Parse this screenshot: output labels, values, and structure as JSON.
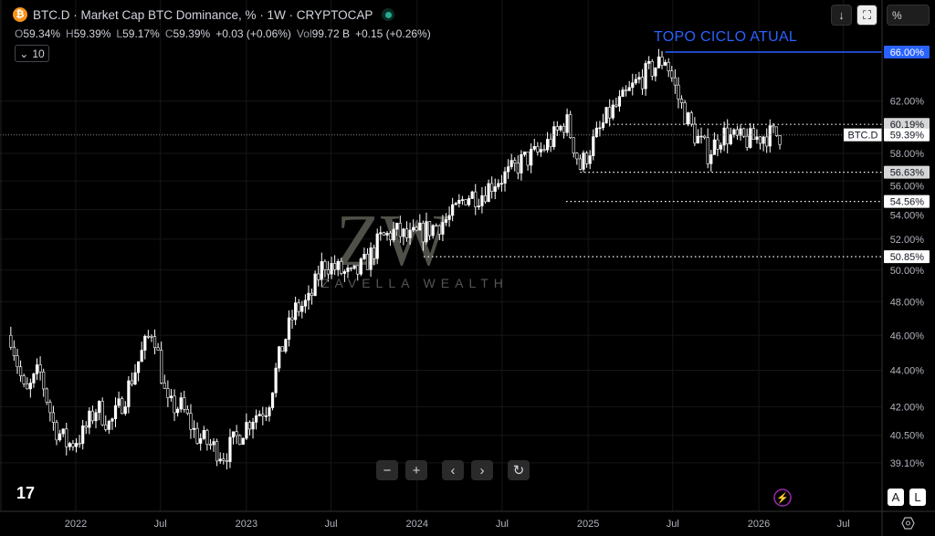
{
  "header": {
    "symbol": "BTC.D",
    "title": "BTC.D · Market Cap BTC Dominance, % · 1W · CRYPTOCAP",
    "coin_icon": "bitcoin-icon",
    "coin_glyph": "₿",
    "status": "market-open-dot"
  },
  "ohlc": {
    "o_label": "O",
    "o": "59.34%",
    "h_label": "H",
    "h": "59.39%",
    "l_label": "L",
    "l": "59.17%",
    "c_label": "C",
    "c": "59.39%",
    "change": "+0.03 (+0.06%)",
    "vol_label": "Vol",
    "vol": "99.72 B",
    "vol_change": "+0.15 (+0.26%)"
  },
  "indicator_toggle": {
    "label": "10"
  },
  "toolbar": {
    "scale_label": "%"
  },
  "annotation": {
    "text": "TOPO CICLO ATUAL",
    "color": "#2962ff"
  },
  "watermark": {
    "text": "ZAVELLA WEALTH",
    "logo": "ZW"
  },
  "axis_buttons": {
    "auto": "A",
    "log": "L"
  },
  "chart_data": {
    "type": "candlestick",
    "interval": "1W",
    "scale": "log",
    "ylim": [
      38.5,
      68.5
    ],
    "grid": true,
    "y_ticks": [
      "62.00%",
      "58.00%",
      "56.00%",
      "54.00%",
      "52.00%",
      "50.00%",
      "48.00%",
      "46.00%",
      "44.00%",
      "42.00%",
      "40.50%",
      "39.10%"
    ],
    "y_tick_values": [
      62,
      58,
      56,
      54,
      52,
      50,
      48,
      46,
      44,
      42,
      40.5,
      39.1
    ],
    "x_ticks": [
      "2022",
      "Jul",
      "2023",
      "Jul",
      "2024",
      "Jul",
      "2025",
      "Jul",
      "2026",
      "Jul"
    ],
    "x_tick_dates": [
      "2022-01-01",
      "2022-07-01",
      "2023-01-01",
      "2023-07-01",
      "2024-01-01",
      "2024-07-01",
      "2025-01-01",
      "2025-07-01",
      "2026-01-01",
      "2026-07-01"
    ],
    "monthly_closes": {
      "dates": [
        "2021-08",
        "2021-09",
        "2021-10",
        "2021-11",
        "2021-12",
        "2022-01",
        "2022-02",
        "2022-03",
        "2022-04",
        "2022-05",
        "2022-06",
        "2022-07",
        "2022-08",
        "2022-09",
        "2022-10",
        "2022-11",
        "2022-12",
        "2023-01",
        "2023-02",
        "2023-03",
        "2023-04",
        "2023-05",
        "2023-06",
        "2023-07",
        "2023-08",
        "2023-09",
        "2023-10",
        "2023-11",
        "2023-12",
        "2024-01",
        "2024-02",
        "2024-03",
        "2024-04",
        "2024-05",
        "2024-06",
        "2024-07",
        "2024-08",
        "2024-09",
        "2024-10",
        "2024-11",
        "2024-12",
        "2025-01",
        "2025-02",
        "2025-03",
        "2025-04",
        "2025-05",
        "2025-06",
        "2025-07",
        "2025-08",
        "2025-09",
        "2025-10",
        "2025-11",
        "2025-12",
        "2026-01",
        "2026-02"
      ],
      "values": [
        46,
        42.5,
        44,
        41,
        40,
        40.5,
        42,
        41,
        42.5,
        44.5,
        46.5,
        42,
        42,
        40.5,
        40,
        39.5,
        40.5,
        41.5,
        42,
        45,
        47.5,
        48,
        50.5,
        50,
        49.5,
        50.5,
        52,
        52.5,
        52,
        52.5,
        53,
        53.5,
        55,
        55,
        56,
        56.5,
        57.5,
        58,
        59,
        60.5,
        57,
        59,
        61,
        62,
        63.5,
        64.5,
        65.5,
        62,
        59.5,
        58,
        59.5,
        59,
        59,
        59.4,
        59.39
      ]
    },
    "last_price": {
      "label": "BTC.D",
      "value": "59.39%",
      "num": 59.39
    },
    "levels": [
      {
        "value": 66.0,
        "label": "66.00%",
        "style": "solid",
        "color": "#2962ff",
        "from": "2025-06"
      },
      {
        "value": 60.19,
        "label": "60.19%",
        "style": "dotted",
        "color": "#ffffff",
        "from": "2025-02"
      },
      {
        "value": 56.63,
        "label": "56.63%",
        "style": "dotted",
        "color": "#ffffff",
        "from": "2024-12"
      },
      {
        "value": 54.56,
        "label": "54.56%",
        "style": "dotted",
        "color": "#ffffff",
        "from": "2024-11"
      },
      {
        "value": 50.85,
        "label": "50.85%",
        "style": "dotted",
        "color": "#ffffff",
        "from": "2024-01"
      }
    ],
    "candle_color": "#ffffff"
  }
}
